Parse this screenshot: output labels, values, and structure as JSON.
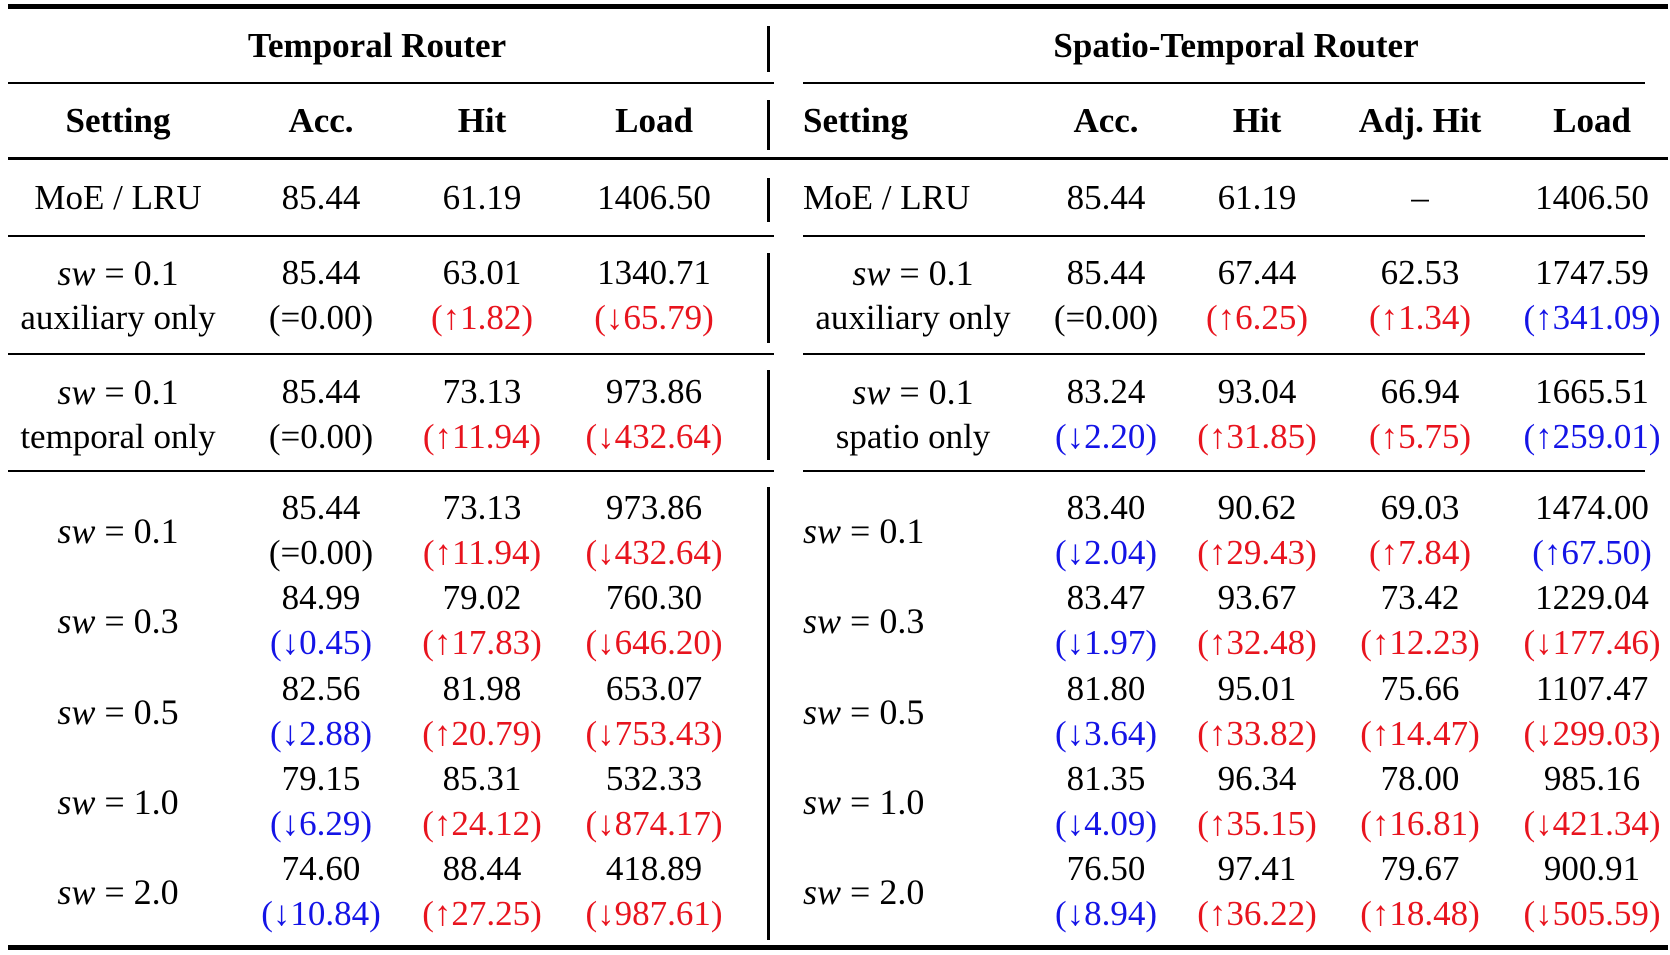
{
  "temporal": {
    "group_title": "Temporal Router",
    "headers": [
      "Setting",
      "Acc.",
      "Hit",
      "Load"
    ],
    "baseline": {
      "setting": "MoE / LRU",
      "acc": "85.44",
      "hit": "61.19",
      "load": "1406.50"
    },
    "aux": {
      "sw_value": "0.1",
      "note": "auxiliary only",
      "acc": "85.44",
      "acc_delta": "(=0.00)",
      "acc_color": "black",
      "hit": "63.01",
      "hit_delta": "(↑1.82)",
      "hit_color": "red",
      "load": "1340.71",
      "load_delta": "(↓65.79)",
      "load_color": "red"
    },
    "only": {
      "sw_value": "0.1",
      "note": "temporal only",
      "acc": "85.44",
      "acc_delta": "(=0.00)",
      "acc_color": "black",
      "hit": "73.13",
      "hit_delta": "(↑11.94)",
      "hit_color": "red",
      "load": "973.86",
      "load_delta": "(↓432.64)",
      "load_color": "red"
    },
    "sweep": [
      {
        "sw_value": "0.1",
        "acc": "85.44",
        "acc_delta": "(=0.00)",
        "acc_color": "black",
        "hit": "73.13",
        "hit_delta": "(↑11.94)",
        "hit_color": "red",
        "load": "973.86",
        "load_delta": "(↓432.64)",
        "load_color": "red"
      },
      {
        "sw_value": "0.3",
        "acc": "84.99",
        "acc_delta": "(↓0.45)",
        "acc_color": "blue",
        "hit": "79.02",
        "hit_delta": "(↑17.83)",
        "hit_color": "red",
        "load": "760.30",
        "load_delta": "(↓646.20)",
        "load_color": "red"
      },
      {
        "sw_value": "0.5",
        "acc": "82.56",
        "acc_delta": "(↓2.88)",
        "acc_color": "blue",
        "hit": "81.98",
        "hit_delta": "(↑20.79)",
        "hit_color": "red",
        "load": "653.07",
        "load_delta": "(↓753.43)",
        "load_color": "red"
      },
      {
        "sw_value": "1.0",
        "acc": "79.15",
        "acc_delta": "(↓6.29)",
        "acc_color": "blue",
        "hit": "85.31",
        "hit_delta": "(↑24.12)",
        "hit_color": "red",
        "load": "532.33",
        "load_delta": "(↓874.17)",
        "load_color": "red"
      },
      {
        "sw_value": "2.0",
        "acc": "74.60",
        "acc_delta": "(↓10.84)",
        "acc_color": "blue",
        "hit": "88.44",
        "hit_delta": "(↑27.25)",
        "hit_color": "red",
        "load": "418.89",
        "load_delta": "(↓987.61)",
        "load_color": "red"
      }
    ]
  },
  "spatio": {
    "group_title": "Spatio-Temporal Router",
    "headers": [
      "Setting",
      "Acc.",
      "Hit",
      "Adj. Hit",
      "Load"
    ],
    "baseline": {
      "setting": "MoE / LRU",
      "acc": "85.44",
      "hit": "61.19",
      "adj": "–",
      "load": "1406.50"
    },
    "aux": {
      "sw_value": "0.1",
      "note": "auxiliary only",
      "acc": "85.44",
      "acc_delta": "(=0.00)",
      "acc_color": "black",
      "hit": "67.44",
      "hit_delta": "(↑6.25)",
      "hit_color": "red",
      "adj": "62.53",
      "adj_delta": "(↑1.34)",
      "adj_color": "red",
      "load": "1747.59",
      "load_delta": "(↑341.09)",
      "load_color": "blue"
    },
    "only": {
      "sw_value": "0.1",
      "note": "spatio only",
      "acc": "83.24",
      "acc_delta": "(↓2.20)",
      "acc_color": "blue",
      "hit": "93.04",
      "hit_delta": "(↑31.85)",
      "hit_color": "red",
      "adj": "66.94",
      "adj_delta": "(↑5.75)",
      "adj_color": "red",
      "load": "1665.51",
      "load_delta": "(↑259.01)",
      "load_color": "blue"
    },
    "sweep": [
      {
        "sw_value": "0.1",
        "acc": "83.40",
        "acc_delta": "(↓2.04)",
        "acc_color": "blue",
        "hit": "90.62",
        "hit_delta": "(↑29.43)",
        "hit_color": "red",
        "adj": "69.03",
        "adj_delta": "(↑7.84)",
        "adj_color": "red",
        "load": "1474.00",
        "load_delta": "(↑67.50)",
        "load_color": "blue"
      },
      {
        "sw_value": "0.3",
        "acc": "83.47",
        "acc_delta": "(↓1.97)",
        "acc_color": "blue",
        "hit": "93.67",
        "hit_delta": "(↑32.48)",
        "hit_color": "red",
        "adj": "73.42",
        "adj_delta": "(↑12.23)",
        "adj_color": "red",
        "load": "1229.04",
        "load_delta": "(↓177.46)",
        "load_color": "red"
      },
      {
        "sw_value": "0.5",
        "acc": "81.80",
        "acc_delta": "(↓3.64)",
        "acc_color": "blue",
        "hit": "95.01",
        "hit_delta": "(↑33.82)",
        "hit_color": "red",
        "adj": "75.66",
        "adj_delta": "(↑14.47)",
        "adj_color": "red",
        "load": "1107.47",
        "load_delta": "(↓299.03)",
        "load_color": "red"
      },
      {
        "sw_value": "1.0",
        "acc": "81.35",
        "acc_delta": "(↓4.09)",
        "acc_color": "blue",
        "hit": "96.34",
        "hit_delta": "(↑35.15)",
        "hit_color": "red",
        "adj": "78.00",
        "adj_delta": "(↑16.81)",
        "adj_color": "red",
        "load": "985.16",
        "load_delta": "(↓421.34)",
        "load_color": "red"
      },
      {
        "sw_value": "2.0",
        "acc": "76.50",
        "acc_delta": "(↓8.94)",
        "acc_color": "blue",
        "hit": "97.41",
        "hit_delta": "(↑36.22)",
        "hit_color": "red",
        "adj": "79.67",
        "adj_delta": "(↑18.48)",
        "adj_color": "red",
        "load": "900.91",
        "load_delta": "(↓505.59)",
        "load_color": "red"
      }
    ]
  }
}
